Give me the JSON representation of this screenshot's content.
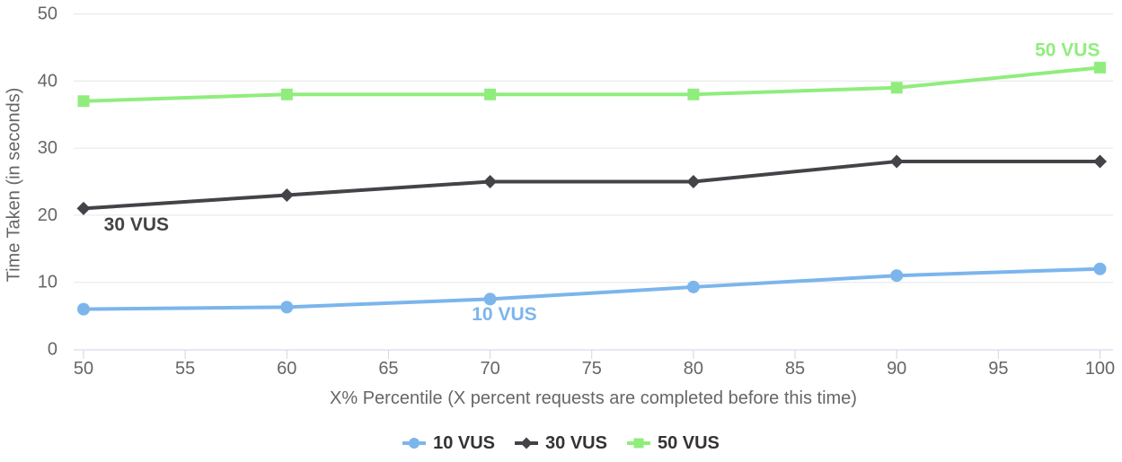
{
  "chart_data": {
    "type": "line",
    "title": "",
    "xlabel": "X% Percentile (X percent requests are completed before this time)",
    "ylabel": "Time Taken (in seconds)",
    "x": [
      50,
      60,
      70,
      80,
      90,
      100
    ],
    "x_ticks": [
      50,
      55,
      60,
      65,
      70,
      75,
      80,
      85,
      90,
      95,
      100
    ],
    "y_ticks": [
      0,
      10,
      20,
      30,
      40,
      50
    ],
    "xlim": [
      50,
      100
    ],
    "ylim": [
      0,
      50
    ],
    "grid": true,
    "legend_position": "bottom",
    "series": [
      {
        "name": "10 VUS",
        "color": "#7cb5ec",
        "marker": "circle",
        "values": [
          6,
          6.3,
          7.5,
          9.3,
          11,
          12
        ]
      },
      {
        "name": "30 VUS",
        "color": "#434348",
        "marker": "diamond",
        "values": [
          21,
          23,
          25,
          25,
          28,
          28
        ]
      },
      {
        "name": "50 VUS",
        "color": "#90ed7d",
        "marker": "square",
        "values": [
          37,
          38,
          38,
          38,
          39,
          42
        ]
      }
    ],
    "annotations": [
      {
        "text": "30 VUS",
        "color": "#434348",
        "x": 52.6,
        "y": 18.6
      },
      {
        "text": "10 VUS",
        "color": "#7cb5ec",
        "x": 70.7,
        "y": 5.2
      },
      {
        "text": "50 VUS",
        "color": "#90ed7d",
        "x": 98.4,
        "y": 44.6
      }
    ],
    "colors": {
      "grid": "#e6e6e6",
      "axis_line": "#ccd6eb",
      "tick_text": "#666666",
      "axis_title_text": "#666666",
      "legend_text": "#333333",
      "background": "#ffffff"
    }
  }
}
